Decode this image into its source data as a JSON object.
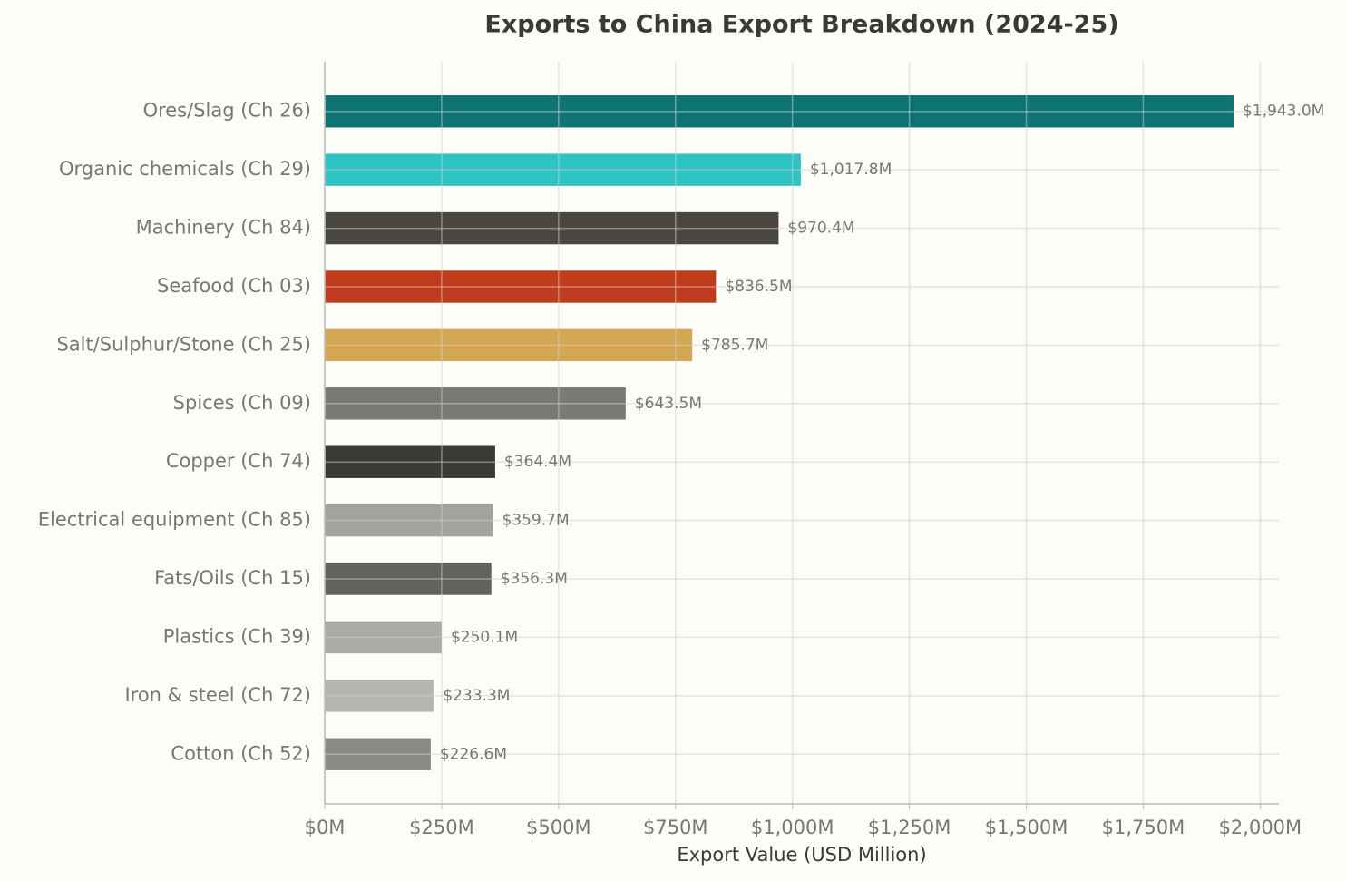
{
  "chart_data": {
    "type": "bar",
    "orientation": "horizontal",
    "title": "Exports to China Export Breakdown (2024-25)",
    "xlabel": "Export Value (USD Million)",
    "categories": [
      "Ores/Slag (Ch 26)",
      "Organic chemicals (Ch 29)",
      "Machinery (Ch 84)",
      "Seafood (Ch 03)",
      "Salt/Sulphur/Stone (Ch 25)",
      "Spices (Ch 09)",
      "Copper (Ch 74)",
      "Electrical equipment (Ch 85)",
      "Fats/Oils (Ch 15)",
      "Plastics (Ch 39)",
      "Iron & steel (Ch 72)",
      "Cotton (Ch 52)"
    ],
    "values": [
      1943.0,
      1017.8,
      970.4,
      836.5,
      785.7,
      643.5,
      364.4,
      359.7,
      356.3,
      250.1,
      233.3,
      226.6
    ],
    "value_labels": [
      "$1,943.0M",
      "$1,017.8M",
      "$970.4M",
      "$836.5M",
      "$785.7M",
      "$643.5M",
      "$364.4M",
      "$359.7M",
      "$356.3M",
      "$250.1M",
      "$233.3M",
      "$226.6M"
    ],
    "colors": [
      "#0e7373",
      "#2ec4c4",
      "#4a4640",
      "#c03c1e",
      "#d4a752",
      "#7a7a74",
      "#3b3a35",
      "#a3a39d",
      "#63625d",
      "#abaaa5",
      "#b6b5b0",
      "#8a8a84"
    ],
    "xlim": [
      0,
      2040
    ],
    "xticks": [
      {
        "value": 0,
        "label": "$0M"
      },
      {
        "value": 250,
        "label": "$250M"
      },
      {
        "value": 500,
        "label": "$500M"
      },
      {
        "value": 750,
        "label": "$750M"
      },
      {
        "value": 1000,
        "label": "$1,000M"
      },
      {
        "value": 1250,
        "label": "$1,250M"
      },
      {
        "value": 1500,
        "label": "$1,500M"
      },
      {
        "value": 1750,
        "label": "$1,750M"
      },
      {
        "value": 2000,
        "label": "$2,000M"
      }
    ],
    "grid": true
  }
}
